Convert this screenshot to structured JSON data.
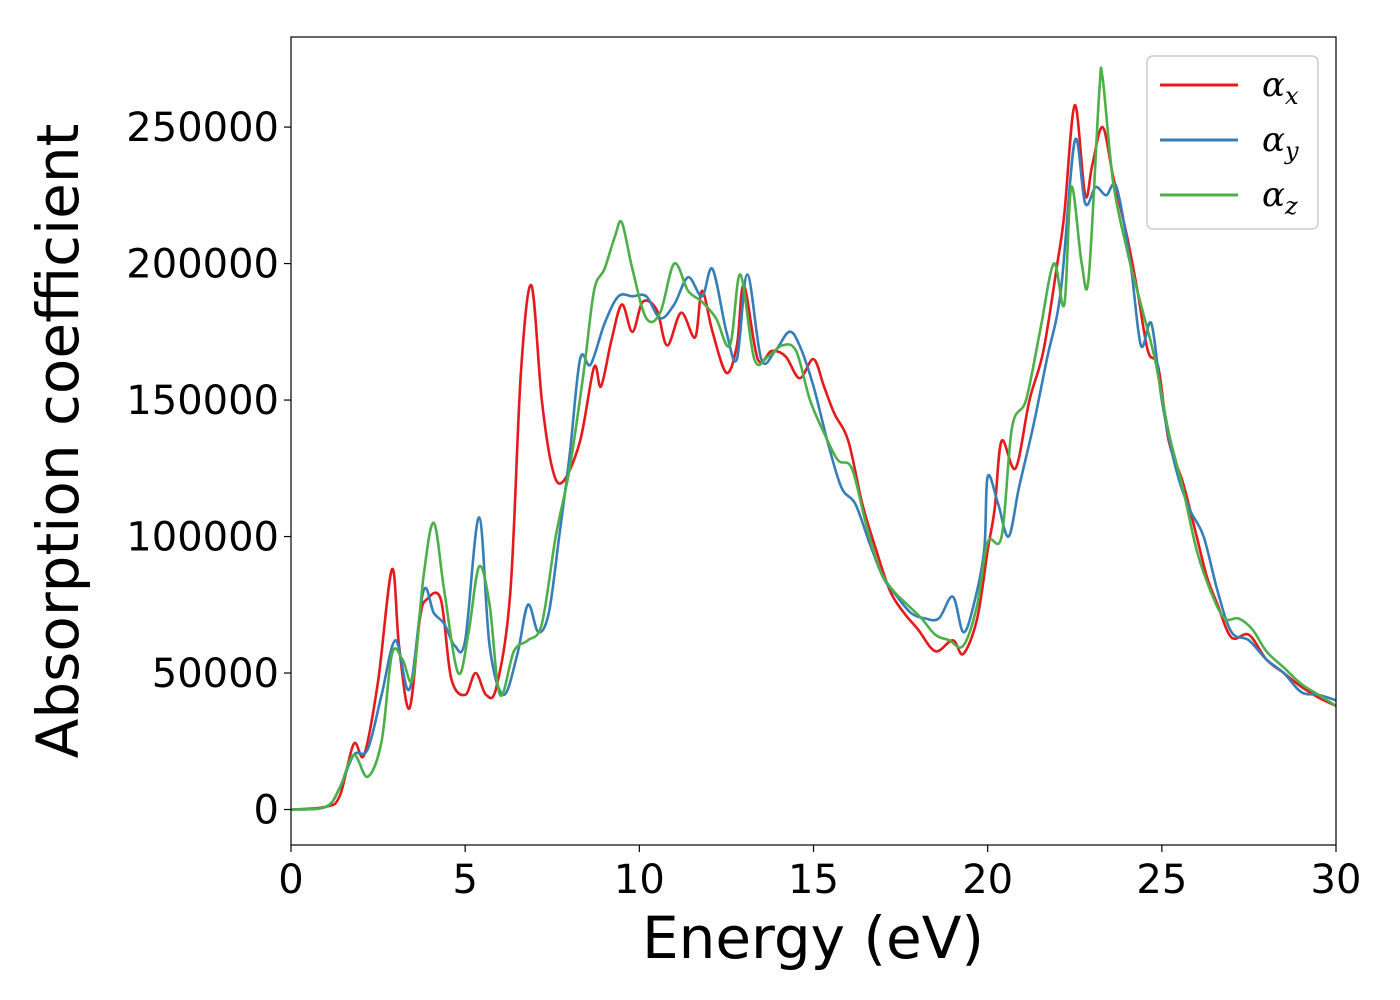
{
  "chart_data": {
    "type": "line",
    "xlabel": "Energy (eV)",
    "ylabel": "Absorption coefficient",
    "xlim": [
      0,
      30
    ],
    "ylim": [
      -13000,
      283000
    ],
    "xticks": [
      0,
      5,
      10,
      15,
      20,
      25,
      30
    ],
    "xtick_labels": [
      "0",
      "5",
      "10",
      "15",
      "20",
      "25",
      "30"
    ],
    "yticks": [
      0,
      50000,
      100000,
      150000,
      200000,
      250000
    ],
    "ytick_labels": [
      "0",
      "50000",
      "100000",
      "150000",
      "200000",
      "250000"
    ],
    "grid": false,
    "legend_position": "top-right",
    "series": [
      {
        "name": "α",
        "subscript": "x",
        "color": "#e41a1c",
        "points": [
          [
            0,
            0
          ],
          [
            1,
            1000
          ],
          [
            1.4,
            5000
          ],
          [
            1.8,
            24000
          ],
          [
            2.1,
            20000
          ],
          [
            2.5,
            47000
          ],
          [
            2.9,
            88000
          ],
          [
            3.1,
            60000
          ],
          [
            3.4,
            37000
          ],
          [
            3.7,
            70000
          ],
          [
            3.9,
            77000
          ],
          [
            4.3,
            77000
          ],
          [
            4.6,
            48000
          ],
          [
            5.0,
            42000
          ],
          [
            5.3,
            50000
          ],
          [
            5.6,
            42000
          ],
          [
            5.9,
            45000
          ],
          [
            6.3,
            80000
          ],
          [
            6.6,
            160000
          ],
          [
            6.9,
            192000
          ],
          [
            7.2,
            150000
          ],
          [
            7.5,
            125000
          ],
          [
            7.8,
            120000
          ],
          [
            8.3,
            135000
          ],
          [
            8.7,
            162000
          ],
          [
            8.9,
            155000
          ],
          [
            9.2,
            172000
          ],
          [
            9.5,
            185000
          ],
          [
            9.8,
            175000
          ],
          [
            10.1,
            186000
          ],
          [
            10.5,
            183000
          ],
          [
            10.8,
            170000
          ],
          [
            11.2,
            182000
          ],
          [
            11.6,
            173000
          ],
          [
            11.8,
            190000
          ],
          [
            12.1,
            175000
          ],
          [
            12.5,
            160000
          ],
          [
            12.8,
            170000
          ],
          [
            13.0,
            192000
          ],
          [
            13.4,
            165000
          ],
          [
            13.8,
            168000
          ],
          [
            14.2,
            166000
          ],
          [
            14.6,
            158000
          ],
          [
            15.0,
            165000
          ],
          [
            15.3,
            155000
          ],
          [
            15.6,
            145000
          ],
          [
            16.0,
            135000
          ],
          [
            16.4,
            112000
          ],
          [
            16.8,
            95000
          ],
          [
            17.2,
            80000
          ],
          [
            17.6,
            72000
          ],
          [
            18.0,
            66000
          ],
          [
            18.5,
            58000
          ],
          [
            19.0,
            62000
          ],
          [
            19.3,
            57000
          ],
          [
            19.7,
            70000
          ],
          [
            20.0,
            95000
          ],
          [
            20.2,
            110000
          ],
          [
            20.4,
            135000
          ],
          [
            20.8,
            125000
          ],
          [
            21.2,
            150000
          ],
          [
            21.6,
            168000
          ],
          [
            22.0,
            200000
          ],
          [
            22.2,
            218000
          ],
          [
            22.5,
            258000
          ],
          [
            22.8,
            225000
          ],
          [
            23.0,
            236000
          ],
          [
            23.3,
            250000
          ],
          [
            23.6,
            232000
          ],
          [
            24.0,
            210000
          ],
          [
            24.3,
            190000
          ],
          [
            24.6,
            168000
          ],
          [
            24.9,
            162000
          ],
          [
            25.2,
            135000
          ],
          [
            25.6,
            120000
          ],
          [
            26.0,
            100000
          ],
          [
            26.3,
            85000
          ],
          [
            26.6,
            75000
          ],
          [
            27.0,
            63000
          ],
          [
            27.5,
            64000
          ],
          [
            28.0,
            55000
          ],
          [
            28.5,
            50000
          ],
          [
            29.0,
            45000
          ],
          [
            29.5,
            41000
          ],
          [
            30.0,
            38000
          ]
        ]
      },
      {
        "name": "α",
        "subscript": "y",
        "color": "#377eb8",
        "points": [
          [
            0,
            0
          ],
          [
            1,
            1000
          ],
          [
            1.4,
            8000
          ],
          [
            1.8,
            20000
          ],
          [
            2.2,
            22000
          ],
          [
            2.6,
            42000
          ],
          [
            3.0,
            62000
          ],
          [
            3.4,
            44000
          ],
          [
            3.8,
            80000
          ],
          [
            4.1,
            72000
          ],
          [
            4.4,
            68000
          ],
          [
            4.7,
            60000
          ],
          [
            5.0,
            62000
          ],
          [
            5.4,
            107000
          ],
          [
            5.7,
            60000
          ],
          [
            6.1,
            42000
          ],
          [
            6.5,
            57000
          ],
          [
            6.8,
            75000
          ],
          [
            7.1,
            65000
          ],
          [
            7.4,
            72000
          ],
          [
            7.7,
            100000
          ],
          [
            8.0,
            130000
          ],
          [
            8.3,
            165000
          ],
          [
            8.6,
            163000
          ],
          [
            9.0,
            178000
          ],
          [
            9.4,
            188000
          ],
          [
            9.8,
            188000
          ],
          [
            10.2,
            188000
          ],
          [
            10.6,
            180000
          ],
          [
            11.0,
            185000
          ],
          [
            11.4,
            195000
          ],
          [
            11.8,
            188000
          ],
          [
            12.1,
            198000
          ],
          [
            12.5,
            175000
          ],
          [
            12.8,
            165000
          ],
          [
            13.1,
            196000
          ],
          [
            13.5,
            165000
          ],
          [
            13.9,
            168000
          ],
          [
            14.3,
            175000
          ],
          [
            14.6,
            170000
          ],
          [
            15.0,
            155000
          ],
          [
            15.4,
            135000
          ],
          [
            15.8,
            118000
          ],
          [
            16.2,
            112000
          ],
          [
            16.6,
            98000
          ],
          [
            17.0,
            85000
          ],
          [
            17.4,
            78000
          ],
          [
            17.8,
            72000
          ],
          [
            18.2,
            70000
          ],
          [
            18.6,
            70000
          ],
          [
            19.0,
            78000
          ],
          [
            19.3,
            65000
          ],
          [
            19.6,
            75000
          ],
          [
            19.9,
            95000
          ],
          [
            20.0,
            122000
          ],
          [
            20.3,
            112000
          ],
          [
            20.6,
            100000
          ],
          [
            20.9,
            118000
          ],
          [
            21.3,
            140000
          ],
          [
            21.7,
            165000
          ],
          [
            22.1,
            190000
          ],
          [
            22.5,
            245000
          ],
          [
            22.8,
            222000
          ],
          [
            23.1,
            228000
          ],
          [
            23.4,
            225000
          ],
          [
            23.7,
            228000
          ],
          [
            24.1,
            200000
          ],
          [
            24.4,
            170000
          ],
          [
            24.7,
            178000
          ],
          [
            25.0,
            150000
          ],
          [
            25.4,
            125000
          ],
          [
            25.8,
            110000
          ],
          [
            26.2,
            100000
          ],
          [
            26.6,
            80000
          ],
          [
            27.0,
            65000
          ],
          [
            27.5,
            62000
          ],
          [
            28.0,
            55000
          ],
          [
            28.5,
            50000
          ],
          [
            29.0,
            43000
          ],
          [
            29.5,
            42000
          ],
          [
            30.0,
            40000
          ]
        ]
      },
      {
        "name": "α",
        "subscript": "z",
        "color": "#4daf4a",
        "points": [
          [
            0,
            0
          ],
          [
            1,
            1000
          ],
          [
            1.4,
            8000
          ],
          [
            1.8,
            20000
          ],
          [
            2.2,
            12000
          ],
          [
            2.6,
            25000
          ],
          [
            2.9,
            57000
          ],
          [
            3.2,
            55000
          ],
          [
            3.5,
            48000
          ],
          [
            3.8,
            85000
          ],
          [
            4.1,
            105000
          ],
          [
            4.4,
            80000
          ],
          [
            4.8,
            50000
          ],
          [
            5.1,
            65000
          ],
          [
            5.4,
            89000
          ],
          [
            5.7,
            75000
          ],
          [
            6.0,
            42000
          ],
          [
            6.4,
            58000
          ],
          [
            6.8,
            62000
          ],
          [
            7.2,
            68000
          ],
          [
            7.6,
            100000
          ],
          [
            8.0,
            125000
          ],
          [
            8.4,
            160000
          ],
          [
            8.7,
            190000
          ],
          [
            9.0,
            198000
          ],
          [
            9.3,
            210000
          ],
          [
            9.5,
            215000
          ],
          [
            9.8,
            198000
          ],
          [
            10.2,
            180000
          ],
          [
            10.6,
            182000
          ],
          [
            11.0,
            200000
          ],
          [
            11.4,
            190000
          ],
          [
            11.8,
            186000
          ],
          [
            12.2,
            180000
          ],
          [
            12.6,
            170000
          ],
          [
            12.9,
            196000
          ],
          [
            13.3,
            165000
          ],
          [
            13.7,
            166000
          ],
          [
            14.1,
            170000
          ],
          [
            14.5,
            168000
          ],
          [
            14.9,
            150000
          ],
          [
            15.3,
            138000
          ],
          [
            15.7,
            128000
          ],
          [
            16.1,
            125000
          ],
          [
            16.5,
            105000
          ],
          [
            16.9,
            88000
          ],
          [
            17.3,
            80000
          ],
          [
            17.7,
            75000
          ],
          [
            18.1,
            70000
          ],
          [
            18.5,
            64000
          ],
          [
            18.9,
            62000
          ],
          [
            19.3,
            60000
          ],
          [
            19.7,
            75000
          ],
          [
            20.0,
            98000
          ],
          [
            20.4,
            100000
          ],
          [
            20.7,
            140000
          ],
          [
            21.1,
            150000
          ],
          [
            21.5,
            175000
          ],
          [
            21.9,
            200000
          ],
          [
            22.2,
            185000
          ],
          [
            22.4,
            228000
          ],
          [
            22.7,
            200000
          ],
          [
            22.9,
            195000
          ],
          [
            23.2,
            262000
          ],
          [
            23.3,
            268000
          ],
          [
            23.6,
            230000
          ],
          [
            24.0,
            205000
          ],
          [
            24.4,
            185000
          ],
          [
            24.8,
            165000
          ],
          [
            25.2,
            138000
          ],
          [
            25.6,
            118000
          ],
          [
            26.0,
            95000
          ],
          [
            26.4,
            80000
          ],
          [
            26.8,
            70000
          ],
          [
            27.2,
            70000
          ],
          [
            27.6,
            66000
          ],
          [
            28.0,
            58000
          ],
          [
            28.5,
            52000
          ],
          [
            29.0,
            46000
          ],
          [
            29.5,
            42000
          ],
          [
            30.0,
            38000
          ]
        ]
      }
    ]
  }
}
